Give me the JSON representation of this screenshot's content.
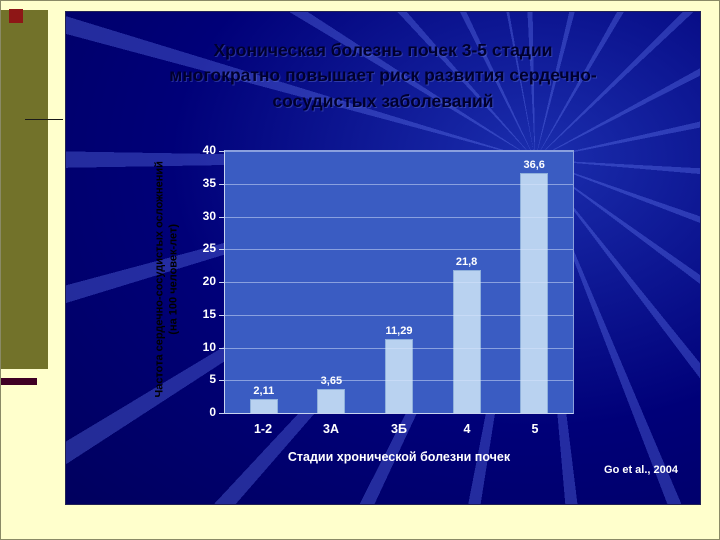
{
  "chart_data": {
    "type": "bar",
    "title": "Хроническая болезнь почек 3-5 стадии многократно повышает риск развития сердечно-сосудистых заболеваний",
    "title_lines": [
      "Хроническая болезнь почек 3-5 стадии",
      "многократно повышает риск развития сердечно-",
      "сосудистых заболеваний"
    ],
    "categories": [
      "1-2",
      "3А",
      "3Б",
      "4",
      "5"
    ],
    "values": [
      2.11,
      3.65,
      11.29,
      21.8,
      36.6
    ],
    "value_labels": [
      "2,11",
      "3,65",
      "11,29",
      "21,8",
      "36,6"
    ],
    "xlabel": "Стадии хронической болезни почек",
    "ylabel_line1": "Частота сердечно-сосудистых осложнений",
    "ylabel_line2": "(на 100 человек-лет)",
    "ylim": [
      0,
      40
    ],
    "yticks": [
      0,
      5,
      10,
      15,
      20,
      25,
      30,
      35,
      40
    ],
    "grid": true,
    "legend": null,
    "citation": "Go et al., 2004",
    "colors": {
      "panel_bg": "#000078",
      "plot_bg": "#3A5CC2",
      "bar_fill": "#B9D2F0",
      "title_color": "#00002E",
      "tick_color": "#FFFFFF",
      "slide_bg": "#FFFFCC",
      "left_band": "#72722A",
      "red_square": "#8E1616",
      "maroon_bar": "#3F0024"
    }
  }
}
